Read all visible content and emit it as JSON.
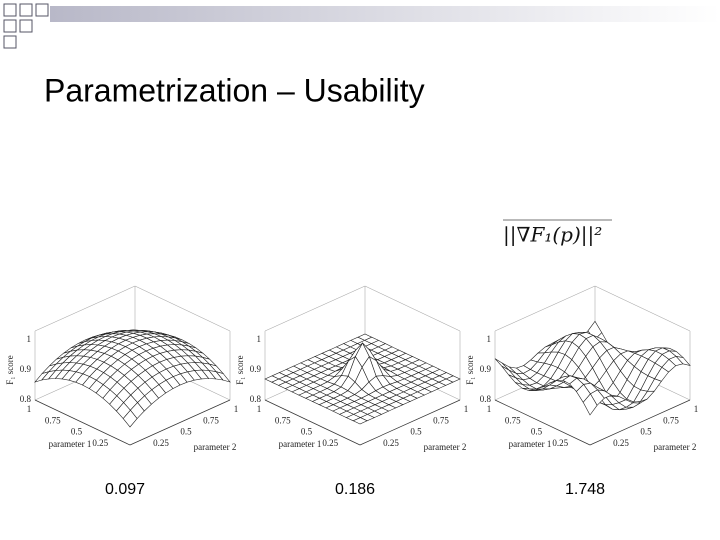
{
  "slide": {
    "title": "Parametrization – Usability",
    "formula": "||∇F₁(p)||²",
    "plots": [
      {
        "z_label": "F₁ score",
        "z_ticks": [
          0.8,
          0.9,
          1
        ],
        "x_label": "parameter 1",
        "x_ticks": [
          1,
          0.75,
          0.5,
          0.25
        ],
        "y_label": "parameter 2",
        "y_ticks": [
          0.25,
          0.5,
          0.75,
          1
        ],
        "caption": 0.097
      },
      {
        "z_label": "F₁ score",
        "z_ticks": [
          0.8,
          0.9,
          1
        ],
        "x_label": "parameter 1",
        "x_ticks": [
          1,
          0.75,
          0.5,
          0.25
        ],
        "y_label": "parameter 2",
        "y_ticks": [
          0.25,
          0.5,
          0.75,
          1
        ],
        "caption": 0.186
      },
      {
        "z_label": "F₁ score",
        "z_ticks": [
          0.8,
          0.9,
          1
        ],
        "x_label": "parameter 1",
        "x_ticks": [
          1,
          0.75,
          0.5,
          0.25
        ],
        "y_label": "parameter 2",
        "y_ticks": [
          0.25,
          0.5,
          0.75,
          1
        ],
        "caption": 1.748
      }
    ]
  }
}
